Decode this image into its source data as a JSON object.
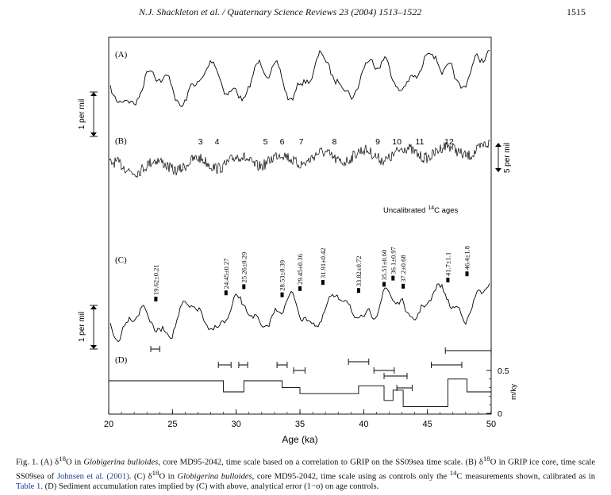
{
  "header": {
    "running_title": "N.J. Shackleton et al. / Quaternary Science Reviews 23 (2004) 1513–1522",
    "page_number": "1515"
  },
  "figure": {
    "panel_labels": {
      "a": "(A)",
      "b": "(B)",
      "c": "(C)",
      "d": "(D)"
    },
    "scale_a": "1 per mil",
    "scale_b": "5 per mil",
    "scale_c": "1 per mil",
    "unit_d": "m/ky",
    "uncalibrated_label": "Uncalibrated",
    "uncalibrated_sup": "14",
    "uncalibrated_suffix": "C ages",
    "interstadials": [
      "3",
      "4",
      "5",
      "6",
      "7",
      "8",
      "9",
      "10",
      "11",
      "12"
    ],
    "c14_ages": [
      "19.62±0.21",
      "24.45±0.27",
      "25.26±0.29",
      "28.53±0.39",
      "29.45±0.36",
      "31.91±0.42",
      "33.82±0.72",
      "35.51±0.60",
      "36.1±0.97",
      "37.2±0.68",
      "41.7±1.1",
      "46.4±1.8"
    ]
  },
  "chart_data": {
    "type": "line",
    "xlabel": "Age (ka)",
    "xlim": [
      20,
      50
    ],
    "xticks": [
      "20",
      "25",
      "30",
      "35",
      "40",
      "45",
      "50"
    ],
    "d_yticks": [
      "0",
      "0.5"
    ],
    "interstadial_ages": [
      27.2,
      28.5,
      32.3,
      33.6,
      35.1,
      37.7,
      41.1,
      42.6,
      44.4,
      46.7
    ],
    "c14_age_positions": [
      23.7,
      29.2,
      30.6,
      33.6,
      35.0,
      36.8,
      39.6,
      41.6,
      42.3,
      43.1,
      46.6,
      48.1
    ],
    "d_sed_rate_steps": [
      [
        20,
        0.38
      ],
      [
        29.0,
        0.38
      ],
      [
        29.0,
        0.25
      ],
      [
        30.6,
        0.25
      ],
      [
        30.6,
        0.38
      ],
      [
        33.6,
        0.38
      ],
      [
        33.6,
        0.3
      ],
      [
        35.0,
        0.3
      ],
      [
        35.0,
        0.23
      ],
      [
        39.6,
        0.23
      ],
      [
        39.6,
        0.32
      ],
      [
        41.6,
        0.32
      ],
      [
        41.6,
        0.15
      ],
      [
        42.3,
        0.15
      ],
      [
        42.3,
        0.27
      ],
      [
        43.1,
        0.27
      ],
      [
        43.1,
        0.08
      ],
      [
        46.6,
        0.08
      ],
      [
        46.6,
        0.4
      ],
      [
        48.1,
        0.4
      ],
      [
        48.1,
        0.25
      ],
      [
        50,
        0.25
      ]
    ],
    "d_error_bars": [
      [
        23.3,
        24.0
      ],
      [
        28.6,
        29.6
      ],
      [
        30.2,
        30.9
      ],
      [
        33.2,
        34.0
      ],
      [
        34.5,
        35.4
      ],
      [
        38.8,
        40.4
      ],
      [
        40.8,
        42.4
      ],
      [
        41.6,
        43.4
      ],
      [
        42.6,
        43.8
      ],
      [
        45.3,
        47.7
      ],
      [
        46.4,
        50.0
      ]
    ]
  },
  "caption": {
    "p1": "Fig. 1.  (A) δ",
    "p1_sup": "18",
    "p2": "O in ",
    "p2_it": "Globigerina bulloides",
    "p3": ", core MD95-2042, time scale based on a correlation to GRIP on the SS09sea time scale. (B) δ",
    "p3_sup": "18",
    "p4": "O in GRIP ice core, time scale SS09sea of ",
    "p4_ref": "Johnsen et al. (2001)",
    "p5": ". (C) δ",
    "p5_sup": "18",
    "p6": "O in ",
    "p6_it": "Globigerina bulloides",
    "p7": ", core MD95-2042, time scale using as controls only the ",
    "p7_sup": "14",
    "p8": "C measurements shown, calibrated as in ",
    "p8_ref": "Table 1",
    "p9": ". (D) Sediment accumulation rates implied by (C) with above, analytical error (1−σ) on age controls."
  }
}
